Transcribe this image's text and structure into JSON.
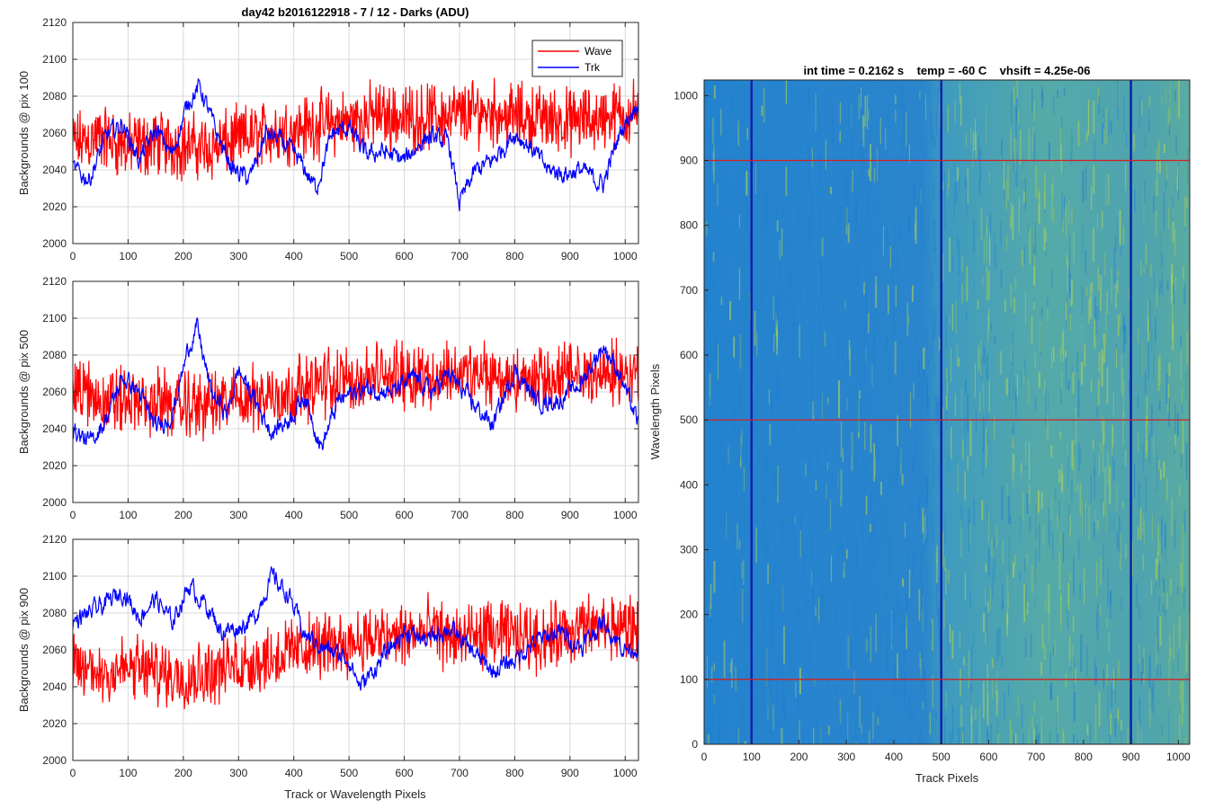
{
  "colors": {
    "wave": "#ff0000",
    "trk": "#0000ff",
    "heat_low": "#1f7fd0",
    "heat_high": "#b9d84a",
    "dark_column": "#0a1faa",
    "marker_row": "#d42020",
    "grid": "#d9d9d9",
    "axis": "#262626"
  },
  "chart_data": [
    {
      "type": "line",
      "title": "day42 b2016122918 - 7 / 12 - Darks (ADU)",
      "xlabel": "",
      "ylabel": "Backgrounds @ pix 100",
      "xlim": [
        0,
        1024
      ],
      "ylim": [
        2000,
        2120
      ],
      "xticks": [
        "0",
        "100",
        "200",
        "300",
        "400",
        "500",
        "600",
        "700",
        "800",
        "900",
        "1000"
      ],
      "yticks": [
        "2000",
        "2020",
        "2040",
        "2060",
        "2080",
        "2100",
        "2120"
      ],
      "grid": true,
      "legend": {
        "placement": "top-right",
        "entries": [
          "Wave",
          "Trk"
        ]
      },
      "series": [
        {
          "name": "Wave",
          "color": "#ff0000",
          "x": [
            0,
            50,
            100,
            150,
            200,
            250,
            300,
            350,
            400,
            450,
            500,
            550,
            600,
            650,
            700,
            750,
            800,
            850,
            900,
            950,
            1024
          ],
          "values": [
            2054,
            2058,
            2052,
            2055,
            2053,
            2052,
            2056,
            2060,
            2062,
            2065,
            2066,
            2070,
            2068,
            2069,
            2070,
            2072,
            2069,
            2068,
            2066,
            2068,
            2072
          ],
          "spread": 22
        },
        {
          "name": "Trk",
          "color": "#0000ff",
          "x": [
            0,
            30,
            60,
            90,
            120,
            150,
            180,
            210,
            230,
            260,
            290,
            320,
            350,
            380,
            410,
            440,
            470,
            500,
            530,
            560,
            600,
            640,
            680,
            700,
            730,
            760,
            800,
            830,
            860,
            890,
            920,
            960,
            990,
            1024
          ],
          "values": [
            2040,
            2035,
            2058,
            2065,
            2045,
            2062,
            2048,
            2078,
            2085,
            2060,
            2040,
            2035,
            2060,
            2055,
            2045,
            2030,
            2060,
            2063,
            2048,
            2050,
            2045,
            2058,
            2055,
            2022,
            2040,
            2045,
            2060,
            2052,
            2040,
            2038,
            2040,
            2032,
            2060,
            2078
          ],
          "spread": 8
        }
      ]
    },
    {
      "type": "line",
      "title": "",
      "xlabel": "",
      "ylabel": "Backgrounds @ pix 500",
      "xlim": [
        0,
        1024
      ],
      "ylim": [
        2000,
        2120
      ],
      "xticks": [
        "0",
        "100",
        "200",
        "300",
        "400",
        "500",
        "600",
        "700",
        "800",
        "900",
        "1000"
      ],
      "yticks": [
        "2000",
        "2020",
        "2040",
        "2060",
        "2080",
        "2100",
        "2120"
      ],
      "grid": true,
      "series": [
        {
          "name": "Wave",
          "color": "#ff0000",
          "x": [
            0,
            50,
            100,
            150,
            200,
            250,
            300,
            350,
            400,
            450,
            500,
            550,
            600,
            650,
            700,
            750,
            800,
            850,
            900,
            950,
            1024
          ],
          "values": [
            2062,
            2056,
            2055,
            2054,
            2052,
            2053,
            2056,
            2058,
            2060,
            2065,
            2066,
            2068,
            2070,
            2068,
            2070,
            2068,
            2066,
            2067,
            2068,
            2070,
            2070
          ],
          "spread": 22
        },
        {
          "name": "Trk",
          "color": "#0000ff",
          "x": [
            0,
            30,
            60,
            90,
            120,
            150,
            180,
            210,
            225,
            250,
            280,
            300,
            330,
            360,
            390,
            420,
            450,
            480,
            510,
            540,
            580,
            620,
            650,
            680,
            720,
            760,
            800,
            840,
            880,
            920,
            960,
            990,
            1024
          ],
          "values": [
            2040,
            2032,
            2045,
            2068,
            2060,
            2040,
            2048,
            2085,
            2095,
            2060,
            2048,
            2072,
            2055,
            2038,
            2045,
            2058,
            2030,
            2055,
            2060,
            2062,
            2060,
            2068,
            2060,
            2070,
            2055,
            2042,
            2072,
            2055,
            2055,
            2065,
            2085,
            2070,
            2042
          ],
          "spread": 8
        }
      ]
    },
    {
      "type": "line",
      "title": "",
      "xlabel": "Track or Wavelength Pixels",
      "ylabel": "Backgrounds @ pix 900",
      "xlim": [
        0,
        1024
      ],
      "ylim": [
        2000,
        2120
      ],
      "xticks": [
        "0",
        "100",
        "200",
        "300",
        "400",
        "500",
        "600",
        "700",
        "800",
        "900",
        "1000"
      ],
      "yticks": [
        "2000",
        "2020",
        "2040",
        "2060",
        "2080",
        "2100",
        "2120"
      ],
      "grid": true,
      "series": [
        {
          "name": "Wave",
          "color": "#ff0000",
          "x": [
            0,
            50,
            100,
            150,
            200,
            250,
            300,
            350,
            400,
            450,
            500,
            550,
            600,
            650,
            700,
            750,
            800,
            850,
            900,
            950,
            1024
          ],
          "values": [
            2050,
            2048,
            2050,
            2048,
            2046,
            2048,
            2052,
            2055,
            2060,
            2062,
            2065,
            2066,
            2068,
            2070,
            2066,
            2068,
            2068,
            2066,
            2070,
            2072,
            2072
          ],
          "spread": 22
        },
        {
          "name": "Trk",
          "color": "#0000ff",
          "x": [
            0,
            30,
            60,
            90,
            120,
            150,
            180,
            210,
            240,
            270,
            300,
            330,
            360,
            390,
            420,
            460,
            500,
            520,
            560,
            600,
            640,
            680,
            720,
            760,
            800,
            840,
            880,
            920,
            960,
            1000,
            1024
          ],
          "values": [
            2075,
            2080,
            2085,
            2092,
            2078,
            2088,
            2075,
            2095,
            2085,
            2070,
            2072,
            2078,
            2100,
            2090,
            2068,
            2060,
            2055,
            2040,
            2055,
            2070,
            2065,
            2072,
            2060,
            2048,
            2055,
            2065,
            2070,
            2062,
            2075,
            2060,
            2062
          ],
          "spread": 8
        }
      ]
    },
    {
      "type": "heatmap",
      "title": "int time = 0.2162 s    temp = -60 C    vhsift = 4.25e-06",
      "xlabel": "Track Pixels",
      "ylabel": "Wavelength Pixels",
      "xlim": [
        0,
        1024
      ],
      "ylim": [
        0,
        1024
      ],
      "xticks": [
        "0",
        "100",
        "200",
        "300",
        "400",
        "500",
        "600",
        "700",
        "800",
        "900",
        "1000"
      ],
      "yticks": [
        "0",
        "100",
        "200",
        "300",
        "400",
        "500",
        "600",
        "700",
        "800",
        "900",
        "1000"
      ],
      "dark_columns": [
        100,
        500,
        900
      ],
      "marker_rows": [
        100,
        500,
        900
      ],
      "brighter_region_x": [
        500,
        1024
      ]
    }
  ]
}
